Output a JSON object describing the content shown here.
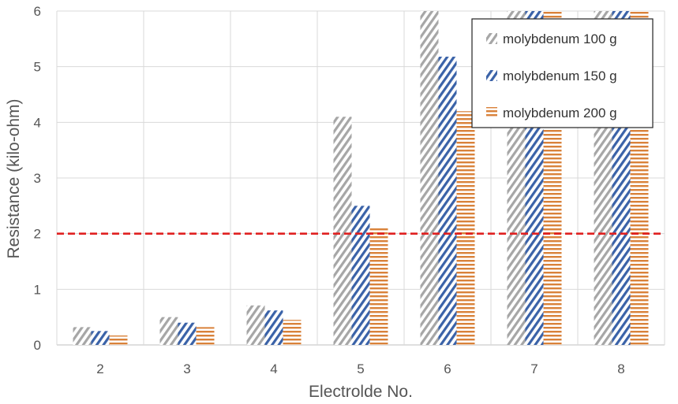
{
  "chart_data": {
    "type": "bar",
    "title": "",
    "xlabel": "Electrolde No.",
    "ylabel": "Resistance (kilo-ohm)",
    "categories": [
      "2",
      "3",
      "4",
      "5",
      "6",
      "7",
      "8"
    ],
    "ylim": [
      0,
      6
    ],
    "yticks": [
      "0",
      "1",
      "2",
      "3",
      "4",
      "5",
      "6"
    ],
    "grid": true,
    "legend_position": "top-right",
    "series": [
      {
        "name": "molybdenum 100 g",
        "color": "#a6a6a6",
        "pattern": "diagonal-hatch",
        "values": [
          0.32,
          0.5,
          0.71,
          4.1,
          6.0,
          6.0,
          6.0
        ]
      },
      {
        "name": "molybdenum 150 g",
        "color": "#3a62a8",
        "pattern": "diagonal-hatch",
        "values": [
          0.25,
          0.4,
          0.62,
          2.5,
          5.18,
          6.0,
          6.0
        ]
      },
      {
        "name": "molybdenum 200 g",
        "color": "#d9823a",
        "pattern": "horizontal-lines",
        "values": [
          0.17,
          0.32,
          0.45,
          2.12,
          4.2,
          6.0,
          6.0
        ]
      }
    ],
    "reference_line": {
      "y": 2,
      "color": "#e02020",
      "style": "dashed"
    }
  }
}
